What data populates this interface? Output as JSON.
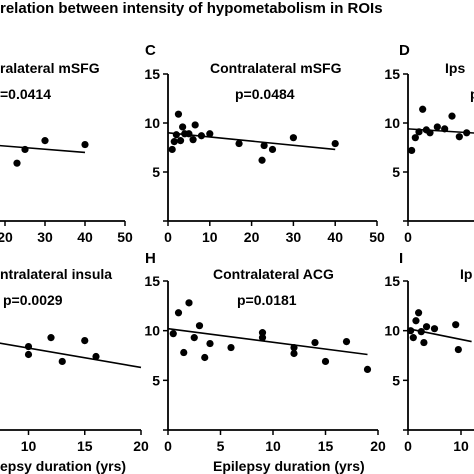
{
  "figure_title": "relation between intensity of hypometabolism in ROIs",
  "chart_data": [
    {
      "type": "scatter",
      "panel": "",
      "title": "ralateral mSFG",
      "annotation": "=0.0414",
      "xlabel": "",
      "ylabel": "",
      "xlim": [
        0,
        50
      ],
      "ylim": [
        0,
        15
      ],
      "xticks": [
        "20",
        "30",
        "40",
        "50"
      ],
      "yticks": [],
      "points": [
        [
          3,
          8.8
        ],
        [
          8,
          7.7
        ],
        [
          23,
          5.9
        ],
        [
          25,
          7.3
        ],
        [
          30,
          8.2
        ],
        [
          40,
          7.8
        ]
      ],
      "trend": [
        [
          0,
          8.3
        ],
        [
          40,
          7.0
        ]
      ]
    },
    {
      "type": "scatter",
      "panel": "C",
      "title": "Contralateral mSFG",
      "annotation": "p=0.0484",
      "xlabel": "",
      "ylabel": "",
      "xlim": [
        0,
        50
      ],
      "ylim": [
        0,
        15
      ],
      "xticks": [
        "0",
        "10",
        "20",
        "30",
        "40",
        "50"
      ],
      "yticks": [
        "5",
        "10",
        "15"
      ],
      "points": [
        [
          1,
          7.3
        ],
        [
          1.5,
          8.1
        ],
        [
          2,
          8.8
        ],
        [
          2.5,
          10.9
        ],
        [
          3,
          8.2
        ],
        [
          3.5,
          9.6
        ],
        [
          4,
          8.9
        ],
        [
          5,
          8.9
        ],
        [
          6,
          8.3
        ],
        [
          6.5,
          9.8
        ],
        [
          8,
          8.7
        ],
        [
          10,
          8.9
        ],
        [
          17,
          7.9
        ],
        [
          22.5,
          6.2
        ],
        [
          23,
          7.7
        ],
        [
          25,
          7.3
        ],
        [
          30,
          8.5
        ],
        [
          40,
          7.9
        ]
      ],
      "trend": [
        [
          0,
          9.0
        ],
        [
          40,
          7.3
        ]
      ]
    },
    {
      "type": "scatter",
      "panel": "D",
      "title": "Ips",
      "annotation": "p",
      "xlabel": "",
      "ylabel": "",
      "xlim": [
        0,
        15
      ],
      "ylim": [
        0,
        15
      ],
      "xticks": [
        "0",
        "10"
      ],
      "yticks": [
        "5",
        "10",
        "15"
      ],
      "points": [
        [
          0.5,
          7.2
        ],
        [
          1,
          8.5
        ],
        [
          1.5,
          9.1
        ],
        [
          2,
          11.4
        ],
        [
          2.5,
          9.3
        ],
        [
          3,
          9.0
        ],
        [
          4,
          9.6
        ],
        [
          5,
          9.4
        ],
        [
          6,
          10.7
        ],
        [
          7,
          8.6
        ],
        [
          8,
          9.0
        ],
        [
          10,
          9.2
        ]
      ],
      "trend": [
        [
          0,
          9.4
        ],
        [
          15,
          8.7
        ]
      ]
    },
    {
      "type": "scatter",
      "panel": "",
      "title": "ntralateral insula",
      "annotation": "p=0.0029",
      "xlabel": "epsy duration (yrs)",
      "ylabel": "",
      "xlim": [
        0,
        20
      ],
      "ylim": [
        0,
        15
      ],
      "xticks": [
        "10",
        "15",
        "20"
      ],
      "yticks": [],
      "points": [
        [
          7,
          9.8
        ],
        [
          7,
          8.9
        ],
        [
          10,
          8.4
        ],
        [
          10,
          7.6
        ],
        [
          12,
          9.3
        ],
        [
          13,
          6.9
        ],
        [
          15,
          9.0
        ],
        [
          16,
          7.4
        ]
      ],
      "trend": [
        [
          2,
          9.8
        ],
        [
          20,
          6.3
        ]
      ]
    },
    {
      "type": "scatter",
      "panel": "H",
      "title": "Contralateral ACG",
      "annotation": "p=0.0181",
      "xlabel": "Epilepsy duration (yrs)",
      "ylabel": "",
      "xlim": [
        0,
        20
      ],
      "ylim": [
        0,
        15
      ],
      "xticks": [
        "0",
        "5",
        "10",
        "15",
        "20"
      ],
      "yticks": [
        "5",
        "10",
        "15"
      ],
      "points": [
        [
          0.5,
          9.7
        ],
        [
          1,
          11.8
        ],
        [
          1.5,
          7.8
        ],
        [
          2,
          12.8
        ],
        [
          2.5,
          9.3
        ],
        [
          3,
          10.5
        ],
        [
          3.5,
          7.3
        ],
        [
          4,
          8.7
        ],
        [
          6,
          8.3
        ],
        [
          9,
          9.8
        ],
        [
          9,
          9.3
        ],
        [
          12,
          8.3
        ],
        [
          12,
          7.7
        ],
        [
          14,
          8.8
        ],
        [
          15,
          6.9
        ],
        [
          17,
          8.9
        ],
        [
          19,
          6.1
        ]
      ],
      "trend": [
        [
          0,
          10.2
        ],
        [
          19,
          7.6
        ]
      ]
    },
    {
      "type": "scatter",
      "panel": "I",
      "title": "Ip",
      "annotation": "",
      "xlabel": "",
      "ylabel": "",
      "xlim": [
        0,
        20
      ],
      "ylim": [
        0,
        15
      ],
      "xticks": [
        "0",
        "10"
      ],
      "yticks": [
        "5",
        "10",
        "15"
      ],
      "points": [
        [
          0.5,
          10.0
        ],
        [
          1,
          9.3
        ],
        [
          1.5,
          11.0
        ],
        [
          2,
          11.8
        ],
        [
          2.5,
          9.9
        ],
        [
          3,
          8.8
        ],
        [
          3.5,
          10.4
        ],
        [
          5,
          10.2
        ],
        [
          9,
          10.6
        ],
        [
          9.5,
          8.1
        ]
      ],
      "trend": [
        [
          0,
          10.2
        ],
        [
          12,
          8.9
        ]
      ]
    }
  ]
}
